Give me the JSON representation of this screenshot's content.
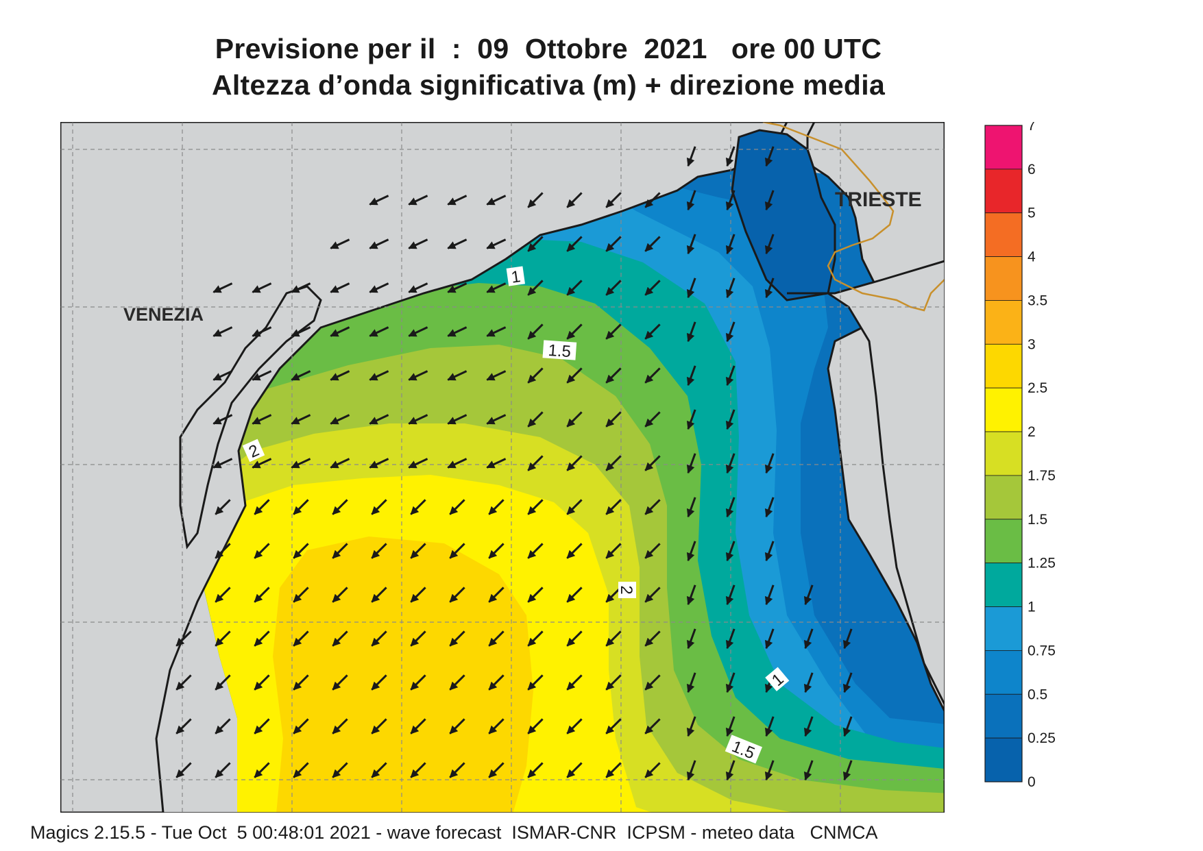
{
  "title": {
    "line1": "Previsione per il  :  09  Ottobre  2021   ore 00 UTC",
    "line2": "Altezza d’onda significativa (m) + direzione media"
  },
  "map": {
    "places": [
      {
        "name": "VENEZIA"
      },
      {
        "name": "TRIESTE"
      }
    ],
    "contour_labels": [
      "1",
      "1.5",
      "2",
      "2",
      "1",
      "1.5"
    ],
    "mean_direction": "southwest"
  },
  "legend": {
    "ticks": [
      "7",
      "6",
      "5",
      "4",
      "3.5",
      "3",
      "2.5",
      "2",
      "1.75",
      "1.5",
      "1.25",
      "1",
      "0.75",
      "0.5",
      "0.25",
      "0"
    ],
    "colors": [
      "#ee1470",
      "#e8262a",
      "#f46d23",
      "#f7931e",
      "#fbb217",
      "#fdd800",
      "#fff200",
      "#d7df23",
      "#a5c73a",
      "#6abd45",
      "#00a99d",
      "#1b9ad6",
      "#0e85cb",
      "#0a71bb",
      "#0762ac"
    ]
  },
  "colors": {
    "land": "#d1d3d4",
    "border": "#c8902c",
    "coast": "#1a1a1a"
  },
  "footer": "Magics 2.15.5 - Tue Oct  5 00:48:01 2021 - wave forecast  ISMAR-CNR  ICPSM - meteo data   CNMCA"
}
